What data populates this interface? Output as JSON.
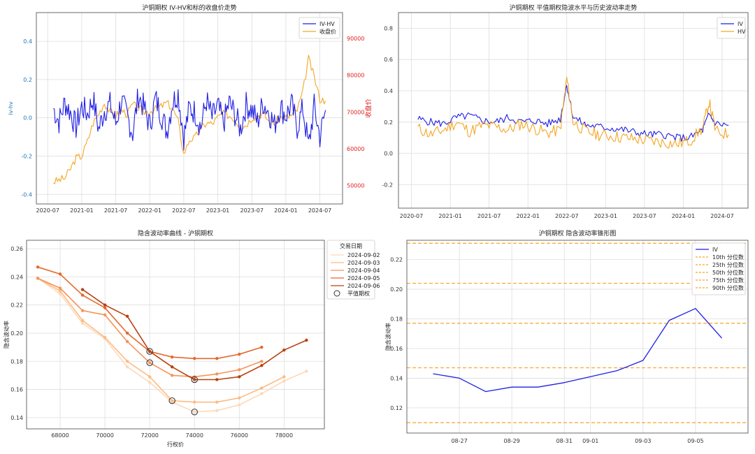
{
  "colors": {
    "iv": "#1f1fe6",
    "hv": "#f5a623",
    "close": "#f5a623",
    "axis_red": "#e02020",
    "axis_blue": "#1f77b4",
    "grid": "#dddddd",
    "quantile": "#f5a623"
  },
  "chart_data": [
    {
      "type": "line",
      "title": "沪铜期权 IV-HV和标的收盘价走势",
      "xlabel": "",
      "ylabel": "iv-hv",
      "ylabel_right": "收盘价",
      "ylim": [
        -0.45,
        0.55
      ],
      "ylim_right": [
        45000,
        97000
      ],
      "x_ticks": [
        "2020-07",
        "2021-01",
        "2021-07",
        "2022-01",
        "2022-07",
        "2023-01",
        "2023-07",
        "2024-01",
        "2024-07"
      ],
      "y_ticks": [
        -0.4,
        -0.2,
        0.0,
        0.2,
        0.4
      ],
      "y_ticks_right": [
        50000,
        60000,
        70000,
        80000,
        90000
      ],
      "legend": {
        "position": "top-right",
        "entries": [
          "IV-HV",
          "收盘价"
        ]
      },
      "series": [
        {
          "name": "IV-HV",
          "axis": "left",
          "x": [
            "2020-08",
            "2020-09",
            "2020-10",
            "2020-11",
            "2020-12",
            "2021-01",
            "2021-02",
            "2021-03",
            "2021-04",
            "2021-05",
            "2021-06",
            "2021-07",
            "2021-08",
            "2021-09",
            "2021-10",
            "2021-11",
            "2021-12",
            "2022-01",
            "2022-02",
            "2022-03",
            "2022-04",
            "2022-05",
            "2022-06",
            "2022-07",
            "2022-08",
            "2022-09",
            "2022-10",
            "2022-11",
            "2022-12",
            "2023-01",
            "2023-02",
            "2023-03",
            "2023-04",
            "2023-05",
            "2023-06",
            "2023-07",
            "2023-08",
            "2023-09",
            "2023-10",
            "2023-11",
            "2023-12",
            "2024-01",
            "2024-02",
            "2024-03",
            "2024-04",
            "2024-05",
            "2024-06",
            "2024-07",
            "2024-08"
          ],
          "values": [
            0.05,
            -0.02,
            0.08,
            0.03,
            -0.05,
            0.06,
            0.02,
            0.1,
            -0.06,
            0.04,
            0.07,
            -0.03,
            0.09,
            0.01,
            -0.08,
            0.12,
            0.05,
            -0.04,
            0.1,
            0.02,
            -0.07,
            0.08,
            0.13,
            -0.1,
            0.05,
            0.03,
            -0.05,
            0.09,
            0.0,
            0.06,
            -0.03,
            0.08,
            0.02,
            -0.06,
            0.07,
            0.04,
            -0.02,
            0.08,
            0.03,
            -0.04,
            0.06,
            0.01,
            0.07,
            -0.05,
            0.05,
            -0.15,
            0.06,
            -0.1,
            0.04
          ]
        },
        {
          "name": "收盘价",
          "axis": "right",
          "x": [
            "2020-08",
            "2020-09",
            "2020-10",
            "2020-11",
            "2020-12",
            "2021-01",
            "2021-02",
            "2021-03",
            "2021-04",
            "2021-05",
            "2021-06",
            "2021-07",
            "2021-08",
            "2021-09",
            "2021-10",
            "2021-11",
            "2021-12",
            "2022-01",
            "2022-02",
            "2022-03",
            "2022-04",
            "2022-05",
            "2022-06",
            "2022-07",
            "2022-08",
            "2022-09",
            "2022-10",
            "2022-11",
            "2022-12",
            "2023-01",
            "2023-02",
            "2023-03",
            "2023-04",
            "2023-05",
            "2023-06",
            "2023-07",
            "2023-08",
            "2023-09",
            "2023-10",
            "2023-11",
            "2023-12",
            "2024-01",
            "2024-02",
            "2024-03",
            "2024-04",
            "2024-05",
            "2024-06",
            "2024-07",
            "2024-08"
          ],
          "values": [
            51000,
            51500,
            52000,
            54500,
            57500,
            58000,
            62000,
            67000,
            69500,
            72500,
            70000,
            69000,
            70500,
            69500,
            72000,
            71000,
            70000,
            70200,
            70800,
            71500,
            72500,
            71000,
            67500,
            58500,
            62500,
            63000,
            65500,
            67000,
            66800,
            68500,
            69500,
            69000,
            68000,
            66000,
            66500,
            68500,
            69000,
            69500,
            67500,
            67000,
            68500,
            68500,
            69000,
            70500,
            75500,
            84500,
            79500,
            73500,
            73000
          ]
        }
      ]
    },
    {
      "type": "line",
      "title": "沪铜期权 平值期权隐波水平与历史波动率走势",
      "xlabel": "",
      "ylabel": "",
      "ylim": [
        -0.35,
        0.9
      ],
      "x_ticks": [
        "2020-07",
        "2021-01",
        "2021-07",
        "2022-01",
        "2022-07",
        "2023-01",
        "2023-07",
        "2024-01",
        "2024-07"
      ],
      "y_ticks": [
        -0.2,
        0.0,
        0.2,
        0.4,
        0.6,
        0.8
      ],
      "legend": {
        "position": "top-right",
        "entries": [
          "IV",
          "HV"
        ]
      },
      "series": [
        {
          "name": "IV",
          "x": [
            "2020-08",
            "2020-10",
            "2020-12",
            "2021-02",
            "2021-04",
            "2021-06",
            "2021-08",
            "2021-10",
            "2021-12",
            "2022-02",
            "2022-04",
            "2022-06",
            "2022-07",
            "2022-08",
            "2022-10",
            "2022-12",
            "2023-02",
            "2023-04",
            "2023-06",
            "2023-08",
            "2023-10",
            "2023-12",
            "2024-02",
            "2024-04",
            "2024-05",
            "2024-06",
            "2024-08"
          ],
          "values": [
            0.22,
            0.2,
            0.19,
            0.23,
            0.24,
            0.21,
            0.2,
            0.23,
            0.2,
            0.21,
            0.19,
            0.22,
            0.44,
            0.23,
            0.18,
            0.17,
            0.16,
            0.15,
            0.13,
            0.12,
            0.12,
            0.1,
            0.1,
            0.15,
            0.25,
            0.19,
            0.18
          ]
        },
        {
          "name": "HV",
          "x": [
            "2020-08",
            "2020-10",
            "2020-12",
            "2021-02",
            "2021-04",
            "2021-06",
            "2021-08",
            "2021-10",
            "2021-12",
            "2022-02",
            "2022-04",
            "2022-06",
            "2022-07",
            "2022-08",
            "2022-10",
            "2022-12",
            "2023-02",
            "2023-04",
            "2023-06",
            "2023-08",
            "2023-10",
            "2023-12",
            "2024-02",
            "2024-04",
            "2024-05",
            "2024-06",
            "2024-08"
          ],
          "values": [
            0.16,
            0.12,
            0.15,
            0.2,
            0.14,
            0.18,
            0.17,
            0.15,
            0.19,
            0.16,
            0.13,
            0.15,
            0.48,
            0.2,
            0.14,
            0.12,
            0.11,
            0.1,
            0.09,
            0.08,
            0.07,
            0.06,
            0.08,
            0.16,
            0.33,
            0.14,
            0.12
          ]
        }
      ]
    },
    {
      "type": "line",
      "title": "隐含波动率曲线 - 沪铜期权",
      "xlabel": "行权价",
      "ylabel": "隐含波动率",
      "xlim": [
        66500,
        79800
      ],
      "ylim": [
        0.132,
        0.266
      ],
      "x_ticks": [
        68000,
        70000,
        72000,
        74000,
        76000,
        78000
      ],
      "y_ticks": [
        0.14,
        0.16,
        0.18,
        0.2,
        0.22,
        0.24,
        0.26
      ],
      "legend": {
        "position": "outside-right",
        "title": "交易日期",
        "entries": [
          "2024-09-02",
          "2024-09-03",
          "2024-09-04",
          "2024-09-05",
          "2024-09-06",
          "平值期权"
        ]
      },
      "series": [
        {
          "name": "2024-09-02",
          "color": "#fdd9b8",
          "x": [
            67000,
            68000,
            69000,
            70000,
            71000,
            72000,
            73000,
            74000,
            75000,
            76000,
            77000,
            78000,
            79000
          ],
          "values": [
            0.239,
            0.228,
            0.207,
            0.196,
            0.176,
            0.165,
            0.151,
            0.144,
            0.145,
            0.149,
            0.157,
            0.166,
            0.173
          ]
        },
        {
          "name": "2024-09-03",
          "color": "#fdbb84",
          "x": [
            67000,
            68000,
            69000,
            70000,
            71000,
            72000,
            73000,
            74000,
            75000,
            76000,
            77000,
            78000
          ],
          "values": [
            0.239,
            0.23,
            0.209,
            0.197,
            0.18,
            0.169,
            0.152,
            0.151,
            0.151,
            0.154,
            0.161,
            0.169
          ]
        },
        {
          "name": "2024-09-04",
          "color": "#f4945a",
          "x": [
            67000,
            68000,
            69000,
            70000,
            71000,
            72000,
            73000,
            74000,
            75000,
            76000,
            77000
          ],
          "values": [
            0.239,
            0.232,
            0.216,
            0.213,
            0.194,
            0.179,
            0.17,
            0.169,
            0.171,
            0.174,
            0.18
          ]
        },
        {
          "name": "2024-09-05",
          "color": "#e5682c",
          "x": [
            67000,
            68000,
            69000,
            70000,
            71000,
            72000,
            73000,
            74000,
            75000,
            76000,
            77000
          ],
          "values": [
            0.247,
            0.242,
            0.227,
            0.218,
            0.2,
            0.187,
            0.183,
            0.182,
            0.182,
            0.185,
            0.19
          ]
        },
        {
          "name": "2024-09-06",
          "color": "#b8420f",
          "x": [
            69000,
            70000,
            71000,
            72000,
            73000,
            74000,
            75000,
            76000,
            77000,
            78000,
            79000
          ],
          "values": [
            0.231,
            0.22,
            0.212,
            0.187,
            0.176,
            0.167,
            0.167,
            0.169,
            0.177,
            0.188,
            0.195
          ]
        }
      ],
      "atm_points": [
        {
          "x": 74000,
          "y": 0.144
        },
        {
          "x": 73000,
          "y": 0.152
        },
        {
          "x": 72000,
          "y": 0.179
        },
        {
          "x": 72000,
          "y": 0.187
        },
        {
          "x": 74000,
          "y": 0.167
        }
      ]
    },
    {
      "type": "line",
      "title": "沪铜期权 隐含波动率锥形图",
      "xlabel": "",
      "ylabel": "隐含波动率",
      "ylim": [
        0.103,
        0.233
      ],
      "x_ticks": [
        "08-27",
        "08-29",
        "08-31",
        "09-01",
        "09-03",
        "09-05"
      ],
      "y_ticks": [
        0.12,
        0.14,
        0.16,
        0.18,
        0.2,
        0.22
      ],
      "legend": {
        "position": "top-right",
        "entries": [
          "IV",
          "10th 分位数",
          "25th 分位数",
          "50th 分位数",
          "75th 分位数",
          "90th 分位数"
        ]
      },
      "series": [
        {
          "name": "IV",
          "x": [
            "2024-08-26",
            "2024-08-27",
            "2024-08-28",
            "2024-08-29",
            "2024-08-30",
            "2024-08-31",
            "2024-09-01",
            "2024-09-02",
            "2024-09-03",
            "2024-09-04",
            "2024-09-05",
            "2024-09-06"
          ],
          "values": [
            0.143,
            0.14,
            0.131,
            0.134,
            0.134,
            0.137,
            0.141,
            0.145,
            0.152,
            0.179,
            0.187,
            0.167
          ]
        }
      ],
      "quantiles": [
        {
          "name": "10th 分位数",
          "value": 0.11
        },
        {
          "name": "25th 分位数",
          "value": 0.147
        },
        {
          "name": "50th 分位数",
          "value": 0.177
        },
        {
          "name": "75th 分位数",
          "value": 0.204
        },
        {
          "name": "90th 分位数",
          "value": 0.231
        }
      ]
    }
  ]
}
